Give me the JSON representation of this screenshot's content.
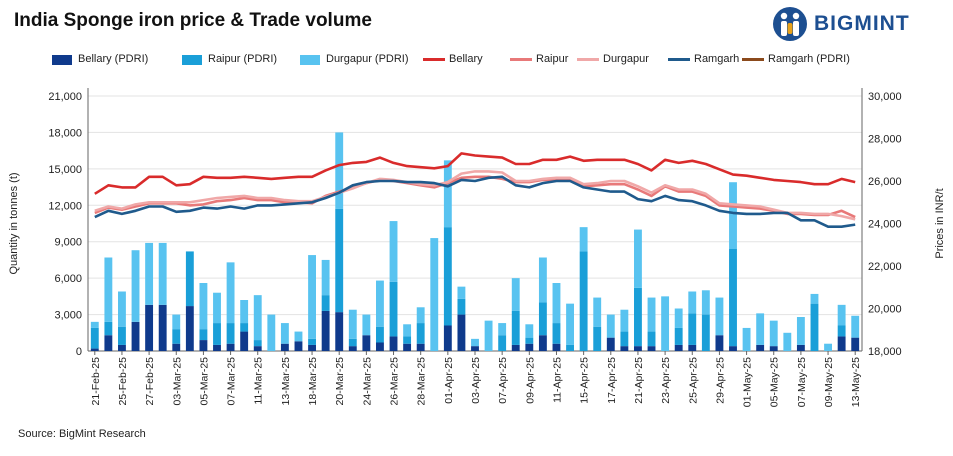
{
  "title": "India Sponge iron price & Trade volume",
  "logo": {
    "text": "BIGMINT",
    "icon": "bigmint-people-logo-icon",
    "color": "#1d4f91"
  },
  "source": "Source: BigMint Research",
  "chart_data": {
    "type": "bar+line",
    "y_left": {
      "label": "Quantity in tonnes (t)",
      "min": 0,
      "max": 21000,
      "ticks": [
        0,
        3000,
        6000,
        9000,
        12000,
        15000,
        18000,
        21000
      ],
      "tick_labels": [
        "0",
        "3,000",
        "6,000",
        "9,000",
        "12,000",
        "15,000",
        "18,000",
        "21,000"
      ]
    },
    "y_right": {
      "label": "Prices in INR/t",
      "min": 18000,
      "max": 30000,
      "ticks": [
        18000,
        20000,
        22000,
        24000,
        26000,
        28000,
        30000
      ],
      "tick_labels": [
        "18,000",
        "20,000",
        "22,000",
        "24,000",
        "26,000",
        "28,000",
        "30,000"
      ]
    },
    "x_tick_labels": [
      "21-Feb-25",
      "25-Feb-25",
      "27-Feb-25",
      "03-Mar-25",
      "05-Mar-25",
      "07-Mar-25",
      "11-Mar-25",
      "13-Mar-25",
      "18-Mar-25",
      "20-Mar-25",
      "24-Mar-25",
      "26-Mar-25",
      "28-Mar-25",
      "01-Apr-25",
      "03-Apr-25",
      "07-Apr-25",
      "09-Apr-25",
      "11-Apr-25",
      "15-Apr-25",
      "17-Apr-25",
      "21-Apr-25",
      "23-Apr-25",
      "25-Apr-25",
      "29-Apr-25",
      "01-May-25",
      "05-May-25",
      "07-May-25",
      "09-May-25",
      "13-May-25"
    ],
    "points_per_tick": 2,
    "n_points": 57,
    "legend_position": "top",
    "bar_series": [
      {
        "name": "Bellary (PDRI)",
        "color": "#0f3a8c",
        "values": [
          200,
          1300,
          500,
          2400,
          3800,
          3800,
          600,
          3700,
          900,
          500,
          600,
          1600,
          400,
          0,
          600,
          800,
          500,
          3300,
          3200,
          400,
          1300,
          700,
          1200,
          600,
          600,
          0,
          2100,
          3000,
          400,
          0,
          0,
          500,
          600,
          1300,
          600,
          0,
          0,
          0,
          1100,
          400,
          400,
          400,
          0,
          500,
          500,
          0,
          1300,
          400,
          0,
          500,
          400,
          0,
          500,
          0,
          0,
          1200,
          1100
        ]
      },
      {
        "name": "Raipur (PDRI)",
        "color": "#1a9fd8",
        "values": [
          1700,
          1100,
          1500,
          0,
          0,
          0,
          1200,
          4500,
          900,
          1800,
          1700,
          700,
          500,
          0,
          0,
          0,
          500,
          1300,
          8500,
          600,
          0,
          1300,
          4500,
          600,
          1700,
          0,
          8100,
          1300,
          0,
          0,
          1300,
          2800,
          500,
          2700,
          1700,
          500,
          8200,
          2000,
          0,
          1200,
          4800,
          1200,
          0,
          1400,
          2600,
          3000,
          0,
          8000,
          0,
          0,
          0,
          0,
          0,
          3900,
          0,
          900,
          0
        ]
      },
      {
        "name": "Durgapur (PDRI)",
        "color": "#58c3f0",
        "values": [
          500,
          5300,
          2900,
          5900,
          5100,
          5100,
          1200,
          0,
          3800,
          2500,
          5000,
          1900,
          3700,
          3000,
          1700,
          800,
          6900,
          2900,
          6300,
          2400,
          1700,
          3800,
          5000,
          1000,
          1300,
          9300,
          5500,
          1000,
          600,
          2500,
          1000,
          2700,
          1100,
          3700,
          3300,
          3400,
          2000,
          2400,
          1900,
          1800,
          4800,
          2800,
          4500,
          1600,
          1800,
          2000,
          3100,
          5500,
          1900,
          2600,
          2100,
          1500,
          2300,
          800,
          600,
          1700,
          1800
        ]
      }
    ],
    "line_series": [
      {
        "name": "Bellary",
        "color": "#d92b2b",
        "values": [
          25400,
          25800,
          25700,
          25700,
          26200,
          26200,
          25800,
          25850,
          26200,
          26150,
          26150,
          26200,
          26150,
          26100,
          26150,
          26200,
          26200,
          26500,
          26750,
          26850,
          26900,
          27100,
          26850,
          26700,
          26650,
          26600,
          26700,
          27300,
          27200,
          27150,
          27100,
          26800,
          26800,
          27000,
          27000,
          27150,
          26950,
          27000,
          27000,
          27000,
          26800,
          26500,
          27000,
          26850,
          26950,
          26800,
          26550,
          26300,
          26250,
          26150,
          26050,
          26000,
          25950,
          25850,
          25850,
          26100,
          25950
        ]
      },
      {
        "name": "Raipur",
        "color": "#e87979",
        "values": [
          24500,
          24750,
          24650,
          24800,
          24950,
          24950,
          24950,
          24850,
          24900,
          25050,
          25100,
          25200,
          25100,
          25100,
          25000,
          25000,
          24950,
          25300,
          25500,
          25700,
          25900,
          26050,
          26000,
          25900,
          25800,
          25700,
          25900,
          26150,
          26200,
          26200,
          26100,
          25950,
          25950,
          26050,
          26050,
          26050,
          25750,
          25800,
          25850,
          25850,
          25600,
          25300,
          25750,
          25500,
          25500,
          25300,
          24850,
          24800,
          24750,
          24700,
          24600,
          24450,
          24450,
          24400,
          24400,
          24600,
          24300
        ]
      },
      {
        "name": "Durgapur",
        "color": "#f0a8a8",
        "values": [
          24600,
          24800,
          24700,
          24900,
          25000,
          25000,
          25000,
          25000,
          25100,
          25200,
          25250,
          25300,
          25200,
          25200,
          25100,
          25050,
          25050,
          25250,
          25450,
          25650,
          25900,
          26100,
          26050,
          25950,
          25850,
          25800,
          25950,
          26350,
          26450,
          26450,
          26400,
          26000,
          26000,
          26100,
          26150,
          26150,
          25850,
          25900,
          26000,
          26000,
          25750,
          25450,
          25800,
          25600,
          25600,
          25400,
          24950,
          24900,
          24850,
          24800,
          24650,
          24500,
          24500,
          24450,
          24450,
          24350,
          24200
        ]
      },
      {
        "name": "Ramgarh",
        "color": "#1f5a8c",
        "values": [
          24300,
          24600,
          24450,
          24600,
          24800,
          24800,
          24550,
          24600,
          24750,
          24700,
          24800,
          24700,
          24850,
          24850,
          24900,
          24950,
          25000,
          25200,
          25450,
          25800,
          25950,
          26000,
          26000,
          25950,
          25950,
          25900,
          25750,
          26050,
          26000,
          26150,
          26200,
          25800,
          25700,
          25900,
          26000,
          26000,
          25700,
          25600,
          25500,
          25500,
          25150,
          25050,
          25300,
          25100,
          25050,
          24850,
          24600,
          24500,
          24450,
          24450,
          24500,
          24500,
          24150,
          24150,
          23850,
          23850,
          23950
        ]
      },
      {
        "name": "Ramgarh (PDRI)",
        "color": "#8b4a1c",
        "values": []
      }
    ]
  }
}
